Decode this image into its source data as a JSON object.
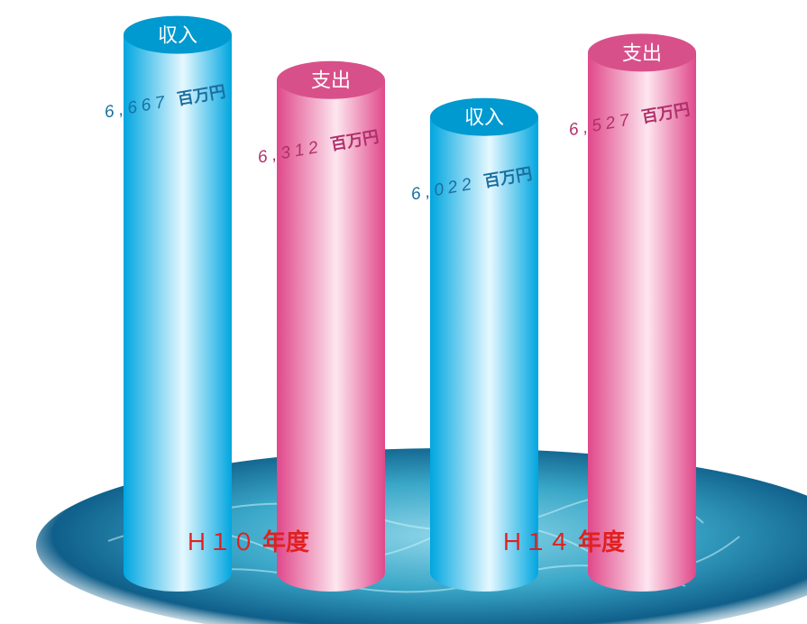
{
  "chart_data": {
    "type": "bar",
    "categories": [
      "Ｈ１０年度",
      "Ｈ１４年度"
    ],
    "series": [
      {
        "name": "収入",
        "values": [
          6667,
          6022
        ]
      },
      {
        "name": "支出",
        "values": [
          6312,
          6527
        ]
      }
    ],
    "unit": "百万円",
    "bars": [
      {
        "group": 0,
        "label": "収入",
        "value_text": "6,667",
        "unit": "百万円",
        "value": 6667,
        "kind": "income"
      },
      {
        "group": 0,
        "label": "支出",
        "value_text": "6,312",
        "unit": "百万円",
        "value": 6312,
        "kind": "expense"
      },
      {
        "group": 1,
        "label": "収入",
        "value_text": "6,022",
        "unit": "百万円",
        "value": 6022,
        "kind": "income"
      },
      {
        "group": 1,
        "label": "支出",
        "value_text": "6,527",
        "unit": "百万円",
        "value": 6527,
        "kind": "expense"
      }
    ],
    "year_labels": [
      {
        "prefix": "Ｈ１０",
        "suffix": "年度"
      },
      {
        "prefix": "Ｈ１４",
        "suffix": "年度"
      }
    ]
  },
  "colors": {
    "income_light": "#e6f8ff",
    "income_dark": "#00a6e0",
    "income_cap": "#0099d0",
    "expense_light": "#fde6ef",
    "expense_dark": "#e0488a",
    "expense_cap": "#d8508a",
    "income_number": "#1a6fa0",
    "expense_number": "#b0306a",
    "year_label": "#e02020",
    "water_deep": "#0f5f8a",
    "water_light": "#8fd6e8"
  }
}
